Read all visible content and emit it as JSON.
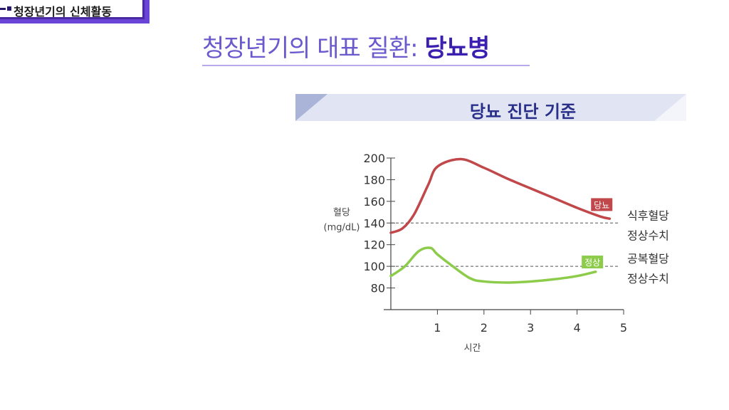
{
  "header": {
    "section_label": "청장년기의 신체활동",
    "title_plain": "청장년기의 대표 질환: ",
    "title_bold": "당뇨병"
  },
  "banner": {
    "text": "당뇨 진단 기준"
  },
  "colors": {
    "diabetes": "#c0474a",
    "normal": "#8ccc4a",
    "accent": "#3b1fb0"
  },
  "chart_data": {
    "type": "line",
    "title": "당뇨 진단 기준",
    "xlabel": "시간",
    "ylabel": [
      "혈당",
      "(mg/dL)"
    ],
    "xlim": [
      0,
      5
    ],
    "ylim": [
      60,
      200
    ],
    "x_ticks": [
      1,
      2,
      3,
      4,
      5
    ],
    "y_ticks": [
      80,
      100,
      120,
      140,
      160,
      180,
      200
    ],
    "series": [
      {
        "name": "당뇨",
        "color": "#c0474a",
        "points": [
          [
            0,
            131
          ],
          [
            0.25,
            135
          ],
          [
            0.5,
            148
          ],
          [
            0.8,
            175
          ],
          [
            1.0,
            192
          ],
          [
            1.5,
            199
          ],
          [
            2.0,
            191
          ],
          [
            2.5,
            181
          ],
          [
            3.0,
            172
          ],
          [
            3.5,
            163
          ],
          [
            4.0,
            154
          ],
          [
            4.5,
            146
          ],
          [
            4.7,
            144
          ]
        ]
      },
      {
        "name": "정상",
        "color": "#8ccc4a",
        "points": [
          [
            0,
            91
          ],
          [
            0.3,
            100
          ],
          [
            0.6,
            114
          ],
          [
            0.85,
            117
          ],
          [
            1.0,
            111
          ],
          [
            1.3,
            101
          ],
          [
            1.7,
            89
          ],
          [
            2.0,
            86
          ],
          [
            2.5,
            85
          ],
          [
            3.0,
            86
          ],
          [
            3.5,
            88
          ],
          [
            4.0,
            91
          ],
          [
            4.4,
            95
          ]
        ]
      }
    ],
    "reference_lines": [
      {
        "y": 140,
        "label": [
          "식후혈당",
          "정상수치"
        ]
      },
      {
        "y": 100,
        "label": [
          "공복혈당",
          "정상수치"
        ]
      }
    ]
  }
}
